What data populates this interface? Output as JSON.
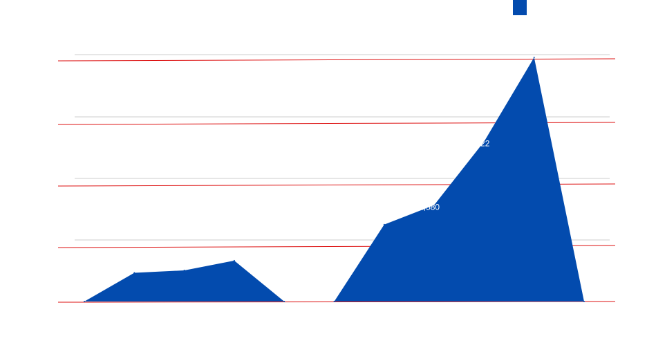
{
  "chart_data": {
    "type": "area",
    "title": "",
    "xlabel": "",
    "ylabel": "",
    "legend_position": "top-right",
    "grid": true,
    "ylim": [
      0,
      4000
    ],
    "x": [
      1,
      2,
      3,
      4,
      5,
      6,
      7,
      8,
      9,
      10,
      11
    ],
    "series": [
      {
        "name": "",
        "color": "#034BAE",
        "values": [
          0,
          470,
          510,
          670,
          0,
          0,
          1260,
          1580,
          2622,
          4000,
          0
        ]
      }
    ],
    "data_labels": [
      {
        "index": 7,
        "text": "1,580"
      },
      {
        "index": 8,
        "text": "2,622"
      }
    ],
    "colors": {
      "area": "#034BAE",
      "gridline_gray": "#cccccc",
      "gridline_red": "#dd1111",
      "label_text": "#ffffff"
    }
  }
}
